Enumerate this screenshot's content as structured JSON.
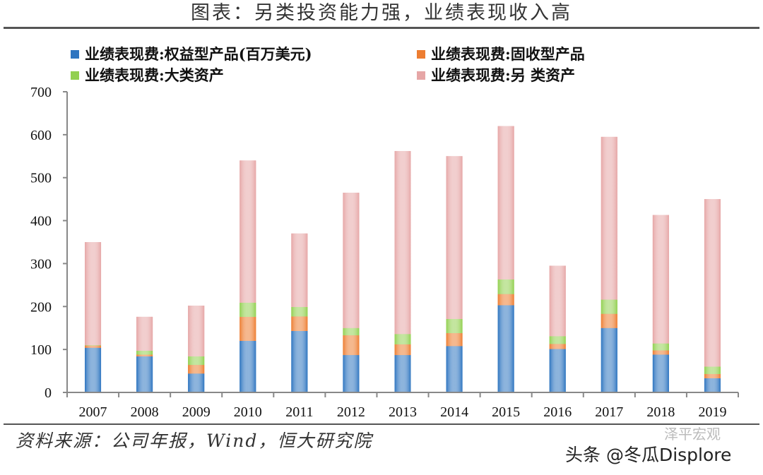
{
  "title": "图表：另类投资能力强，业绩表现收入高",
  "source": "资料来源：公司年报，Wind，恒大研究院",
  "watermark": {
    "account": "泽平宏观",
    "platform": "头条 @冬瓜Displore"
  },
  "chart_data": {
    "type": "bar",
    "stacked": true,
    "categories": [
      "2007",
      "2008",
      "2009",
      "2010",
      "2011",
      "2012",
      "2013",
      "2014",
      "2015",
      "2016",
      "2017",
      "2018",
      "2019"
    ],
    "series": [
      {
        "name": "业绩表现费:权益型产品(百万美元)",
        "color": "#2e75c0",
        "values": [
          104,
          84,
          44,
          120,
          143,
          87,
          87,
          108,
          203,
          101,
          150,
          88,
          33
        ]
      },
      {
        "name": "业绩表现费:固收型产品",
        "color": "#ed7d31",
        "values": [
          5,
          4,
          20,
          56,
          34,
          46,
          25,
          30,
          26,
          12,
          33,
          10,
          10
        ]
      },
      {
        "name": "业绩表现费:大类资产",
        "color": "#92d050",
        "values": [
          1,
          9,
          20,
          33,
          22,
          17,
          24,
          33,
          34,
          18,
          33,
          16,
          17
        ]
      },
      {
        "name": "业绩表现费:另 类资产",
        "color": "#e6a6a6",
        "values": [
          240,
          79,
          118,
          331,
          171,
          315,
          426,
          379,
          357,
          164,
          379,
          299,
          390
        ]
      }
    ],
    "ylim": [
      0,
      700
    ],
    "yticks": [
      "0",
      "100",
      "200",
      "300",
      "400",
      "500",
      "600",
      "700"
    ],
    "legend": "top",
    "grid": false
  }
}
